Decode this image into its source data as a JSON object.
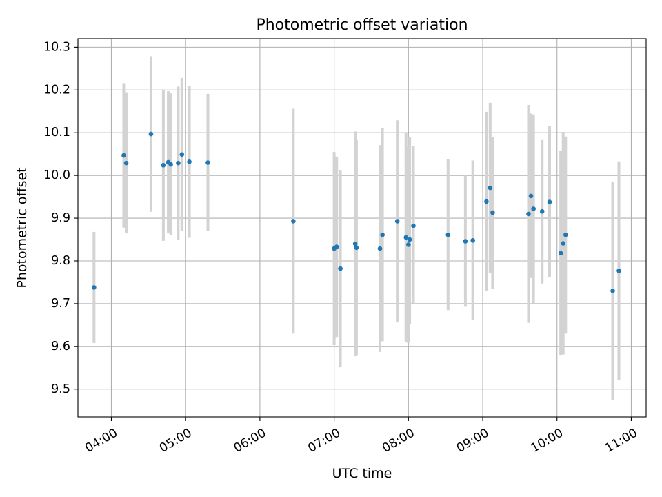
{
  "chart_data": {
    "type": "scatter",
    "title": "Photometric offset variation",
    "xlabel": "UTC time",
    "ylabel": "Photometric offset",
    "grid": true,
    "x_axis": {
      "kind": "time",
      "range": [
        "03:33",
        "11:12"
      ],
      "ticks": [
        "04:00",
        "05:00",
        "06:00",
        "07:00",
        "08:00",
        "09:00",
        "10:00",
        "11:00"
      ],
      "tick_rotation_deg": 30
    },
    "y_axis": {
      "range": [
        9.435,
        10.32
      ],
      "ticks": [
        "9.5",
        "9.6",
        "9.7",
        "9.8",
        "9.9",
        "10.0",
        "10.1",
        "10.2",
        "10.3"
      ]
    },
    "colors": {
      "point": "#1f77b4",
      "errorbar": "#d3d3d3"
    },
    "points": [
      {
        "t": "03:46",
        "y": 9.738,
        "lo": 9.608,
        "hi": 9.868
      },
      {
        "t": "04:10",
        "y": 10.047,
        "lo": 9.878,
        "hi": 10.216
      },
      {
        "t": "04:12",
        "y": 10.029,
        "lo": 9.865,
        "hi": 10.193
      },
      {
        "t": "04:32",
        "y": 10.097,
        "lo": 9.915,
        "hi": 10.279
      },
      {
        "t": "04:42",
        "y": 10.024,
        "lo": 9.847,
        "hi": 10.2
      },
      {
        "t": "04:46",
        "y": 10.031,
        "lo": 9.865,
        "hi": 10.197
      },
      {
        "t": "04:48",
        "y": 10.026,
        "lo": 9.86,
        "hi": 10.192
      },
      {
        "t": "04:54",
        "y": 10.029,
        "lo": 9.85,
        "hi": 10.208
      },
      {
        "t": "04:57",
        "y": 10.049,
        "lo": 9.87,
        "hi": 10.228
      },
      {
        "t": "05:03",
        "y": 10.032,
        "lo": 9.854,
        "hi": 10.21
      },
      {
        "t": "05:18",
        "y": 10.03,
        "lo": 9.87,
        "hi": 10.191
      },
      {
        "t": "06:27",
        "y": 9.893,
        "lo": 9.63,
        "hi": 10.156
      },
      {
        "t": "07:00",
        "y": 9.829,
        "lo": 9.603,
        "hi": 10.055
      },
      {
        "t": "07:02",
        "y": 9.833,
        "lo": 9.622,
        "hi": 10.044
      },
      {
        "t": "07:05",
        "y": 9.782,
        "lo": 9.551,
        "hi": 10.013
      },
      {
        "t": "07:17",
        "y": 9.84,
        "lo": 9.577,
        "hi": 10.103
      },
      {
        "t": "07:18",
        "y": 9.831,
        "lo": 9.58,
        "hi": 10.082
      },
      {
        "t": "07:37",
        "y": 9.829,
        "lo": 9.587,
        "hi": 10.071
      },
      {
        "t": "07:39",
        "y": 9.861,
        "lo": 9.612,
        "hi": 10.11
      },
      {
        "t": "07:51",
        "y": 9.893,
        "lo": 9.656,
        "hi": 10.129
      },
      {
        "t": "07:58",
        "y": 9.855,
        "lo": 9.61,
        "hi": 10.1
      },
      {
        "t": "08:00",
        "y": 9.838,
        "lo": 9.608,
        "hi": 10.069
      },
      {
        "t": "08:01",
        "y": 9.85,
        "lo": 9.652,
        "hi": 10.089
      },
      {
        "t": "08:04",
        "y": 9.882,
        "lo": 9.7,
        "hi": 10.068
      },
      {
        "t": "08:32",
        "y": 9.861,
        "lo": 9.685,
        "hi": 10.038
      },
      {
        "t": "08:46",
        "y": 9.846,
        "lo": 9.693,
        "hi": 10.0
      },
      {
        "t": "08:52",
        "y": 9.848,
        "lo": 9.661,
        "hi": 10.035
      },
      {
        "t": "09:03",
        "y": 9.939,
        "lo": 9.73,
        "hi": 10.149
      },
      {
        "t": "09:06",
        "y": 9.971,
        "lo": 9.772,
        "hi": 10.17
      },
      {
        "t": "09:08",
        "y": 9.913,
        "lo": 9.735,
        "hi": 10.09
      },
      {
        "t": "09:37",
        "y": 9.91,
        "lo": 9.655,
        "hi": 10.165
      },
      {
        "t": "09:39",
        "y": 9.952,
        "lo": 9.76,
        "hi": 10.145
      },
      {
        "t": "09:41",
        "y": 9.922,
        "lo": 9.7,
        "hi": 10.143
      },
      {
        "t": "09:48",
        "y": 9.916,
        "lo": 9.747,
        "hi": 10.083
      },
      {
        "t": "09:54",
        "y": 9.938,
        "lo": 9.762,
        "hi": 10.116
      },
      {
        "t": "10:03",
        "y": 9.818,
        "lo": 9.58,
        "hi": 10.057
      },
      {
        "t": "10:05",
        "y": 9.841,
        "lo": 9.581,
        "hi": 10.102
      },
      {
        "t": "10:07",
        "y": 9.861,
        "lo": 9.63,
        "hi": 10.091
      },
      {
        "t": "10:45",
        "y": 9.73,
        "lo": 9.475,
        "hi": 9.986
      },
      {
        "t": "10:50",
        "y": 9.777,
        "lo": 9.521,
        "hi": 10.033
      }
    ]
  }
}
